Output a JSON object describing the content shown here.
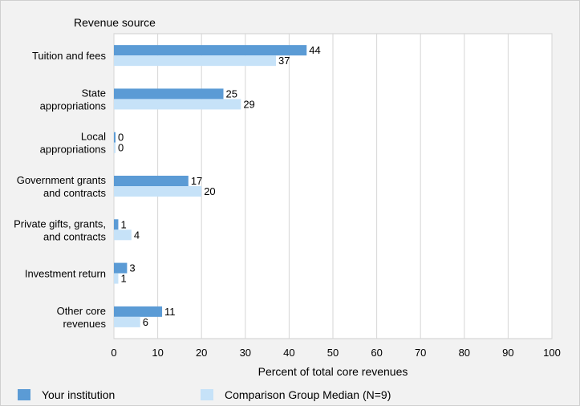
{
  "chart_data": {
    "type": "bar",
    "orientation": "horizontal",
    "ylabel": "Revenue source",
    "xlabel": "Percent of total core revenues",
    "xlim": [
      0,
      100
    ],
    "xticks": [
      0,
      10,
      20,
      30,
      40,
      50,
      60,
      70,
      80,
      90,
      100
    ],
    "grid": "vertical",
    "legend_position": "bottom",
    "categories": [
      [
        "Tuition and fees"
      ],
      [
        "State",
        "appropriations"
      ],
      [
        "Local",
        "appropriations"
      ],
      [
        "Government grants",
        "and contracts"
      ],
      [
        "Private gifts, grants,",
        "and contracts"
      ],
      [
        "Investment return"
      ],
      [
        "Other core",
        "revenues"
      ]
    ],
    "series": [
      {
        "name": "Your institution",
        "color": "#5b9bd5",
        "values": [
          44,
          25,
          0,
          17,
          1,
          3,
          11
        ]
      },
      {
        "name": "Comparison Group Median (N=9)",
        "color": "#c6e2f8",
        "values": [
          37,
          29,
          0,
          20,
          4,
          1,
          6
        ]
      }
    ]
  }
}
